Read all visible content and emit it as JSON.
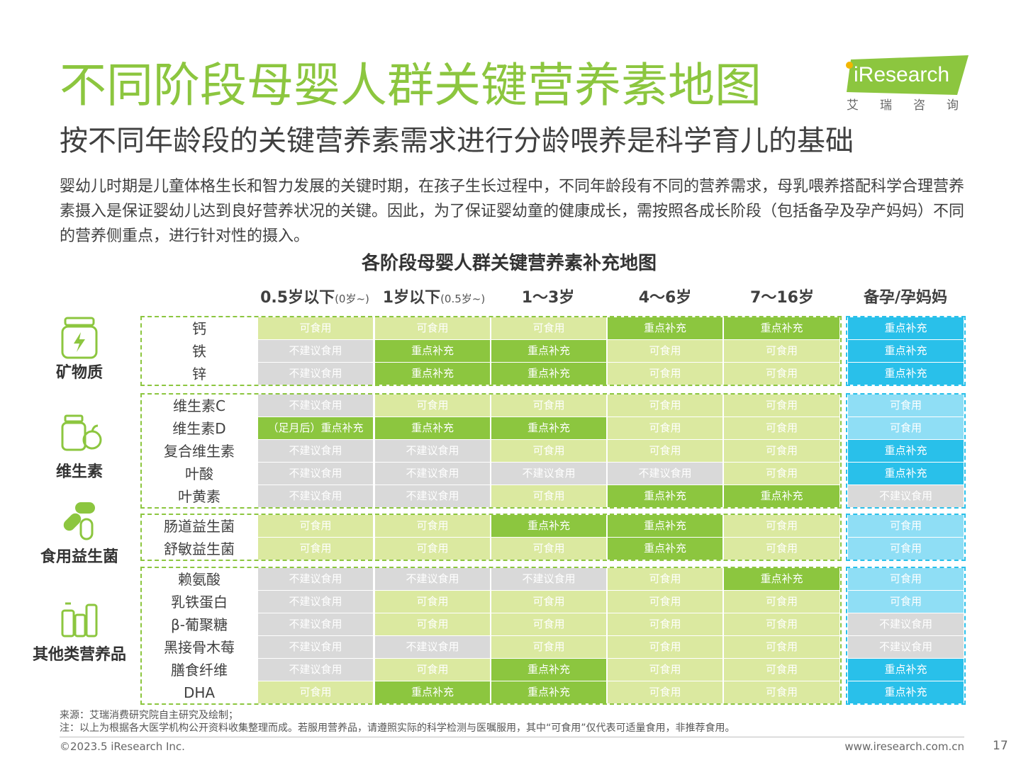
{
  "title": "不同阶段母婴人群关键营养素地图",
  "subtitle": "按不同年龄段的关键营养素需求进行分龄喂养是科学育儿的基础",
  "intro": "婴幼儿时期是儿童体格生长和智力发展的关键时期，在孩子生长过程中，不同年龄段有不同的营养需求，母乳喂养搭配科学合理营养素摄入是保证婴幼儿达到良好营养状况的关键。因此，为了保证婴幼童的健康成长，需按照各成长阶段（包括备孕及孕产妈妈）不同的营养侧重点，进行针对性的摄入。",
  "logo": {
    "word": "iResearch",
    "sub": "艾瑞咨询"
  },
  "chart_title": "各阶段母婴人群关键营养素补充地图",
  "columns": [
    {
      "main": "0.5岁以下",
      "small": "(0岁~)"
    },
    {
      "main": "1岁以下",
      "small": "(0.5岁~)"
    },
    {
      "main": "1～3岁",
      "small": ""
    },
    {
      "main": "4～6岁",
      "small": ""
    },
    {
      "main": "7～16岁",
      "small": ""
    },
    {
      "main": "备孕/孕妈妈",
      "small": ""
    }
  ],
  "levels": {
    "no": "不建议食用",
    "ok": "可食用",
    "key": "重点补充"
  },
  "groups": [
    {
      "name": "矿物质",
      "icon": "mineral-jar-icon",
      "rows": [
        {
          "label": "钙",
          "cells": [
            "ok",
            "ok",
            "ok",
            "key",
            "key",
            "key"
          ]
        },
        {
          "label": "铁",
          "cells": [
            "no",
            "key",
            "key",
            "ok",
            "ok",
            "key"
          ]
        },
        {
          "label": "锌",
          "cells": [
            "no",
            "key",
            "key",
            "ok",
            "ok",
            "key"
          ]
        }
      ]
    },
    {
      "name": "维生素",
      "icon": "vitamin-bottle-apple-icon",
      "rows": [
        {
          "label": "维生素C",
          "cells": [
            "no",
            "ok",
            "ok",
            "ok",
            "ok",
            "ok"
          ]
        },
        {
          "label": "维生素D",
          "cells": [
            "special",
            "key",
            "key",
            "ok",
            "ok",
            "ok"
          ]
        },
        {
          "label": "复合维生素",
          "cells": [
            "no",
            "no",
            "ok",
            "ok",
            "ok",
            "key"
          ]
        },
        {
          "label": "叶酸",
          "cells": [
            "no",
            "no",
            "no",
            "no",
            "ok",
            "key"
          ]
        },
        {
          "label": "叶黄素",
          "cells": [
            "no",
            "no",
            "ok",
            "key",
            "key",
            "no"
          ]
        }
      ]
    },
    {
      "name": "食用益生菌",
      "icon": "probiotic-capsule-icon",
      "rows": [
        {
          "label": "肠道益生菌",
          "cells": [
            "ok",
            "ok",
            "key",
            "key",
            "ok",
            "ok"
          ]
        },
        {
          "label": "舒敏益生菌",
          "cells": [
            "ok",
            "ok",
            "ok",
            "key",
            "ok",
            "ok"
          ]
        }
      ]
    },
    {
      "name": "其他类营养品",
      "icon": "supplement-bottles-icon",
      "rows": [
        {
          "label": "赖氨酸",
          "cells": [
            "no",
            "no",
            "no",
            "ok",
            "key",
            "ok"
          ]
        },
        {
          "label": "乳铁蛋白",
          "cells": [
            "no",
            "ok",
            "ok",
            "ok",
            "ok",
            "ok"
          ]
        },
        {
          "label": "β-葡聚糖",
          "cells": [
            "no",
            "ok",
            "ok",
            "ok",
            "ok",
            "no"
          ]
        },
        {
          "label": "黑接骨木莓",
          "cells": [
            "no",
            "no",
            "ok",
            "ok",
            "ok",
            "no"
          ]
        },
        {
          "label": "膳食纤维",
          "cells": [
            "no",
            "ok",
            "key",
            "ok",
            "ok",
            "key"
          ]
        },
        {
          "label": "DHA",
          "cells": [
            "ok",
            "key",
            "key",
            "ok",
            "ok",
            "key"
          ]
        }
      ]
    }
  ],
  "special_cell_text": "（足月后）重点补充",
  "colors": {
    "green_title": "#8cc63f",
    "green_key": "#8cc63f",
    "green_ok": "#dbe9a0",
    "gray_no": "#d9d9d9",
    "blue_key": "#29c0ea",
    "blue_ok": "#8fdef5"
  },
  "source": "来源：艾瑞消费研究院自主研究及绘制；",
  "note": "注：以上为根据各大医学机构公开资料收集整理而成。若服用营养品，请遵照实际的科学检测与医嘱服用，其中“可食用”仅代表可适量食用，非推荐食用。",
  "copyright": "©2023.5 iResearch Inc.",
  "website": "www.iresearch.com.cn",
  "page_number": "17"
}
